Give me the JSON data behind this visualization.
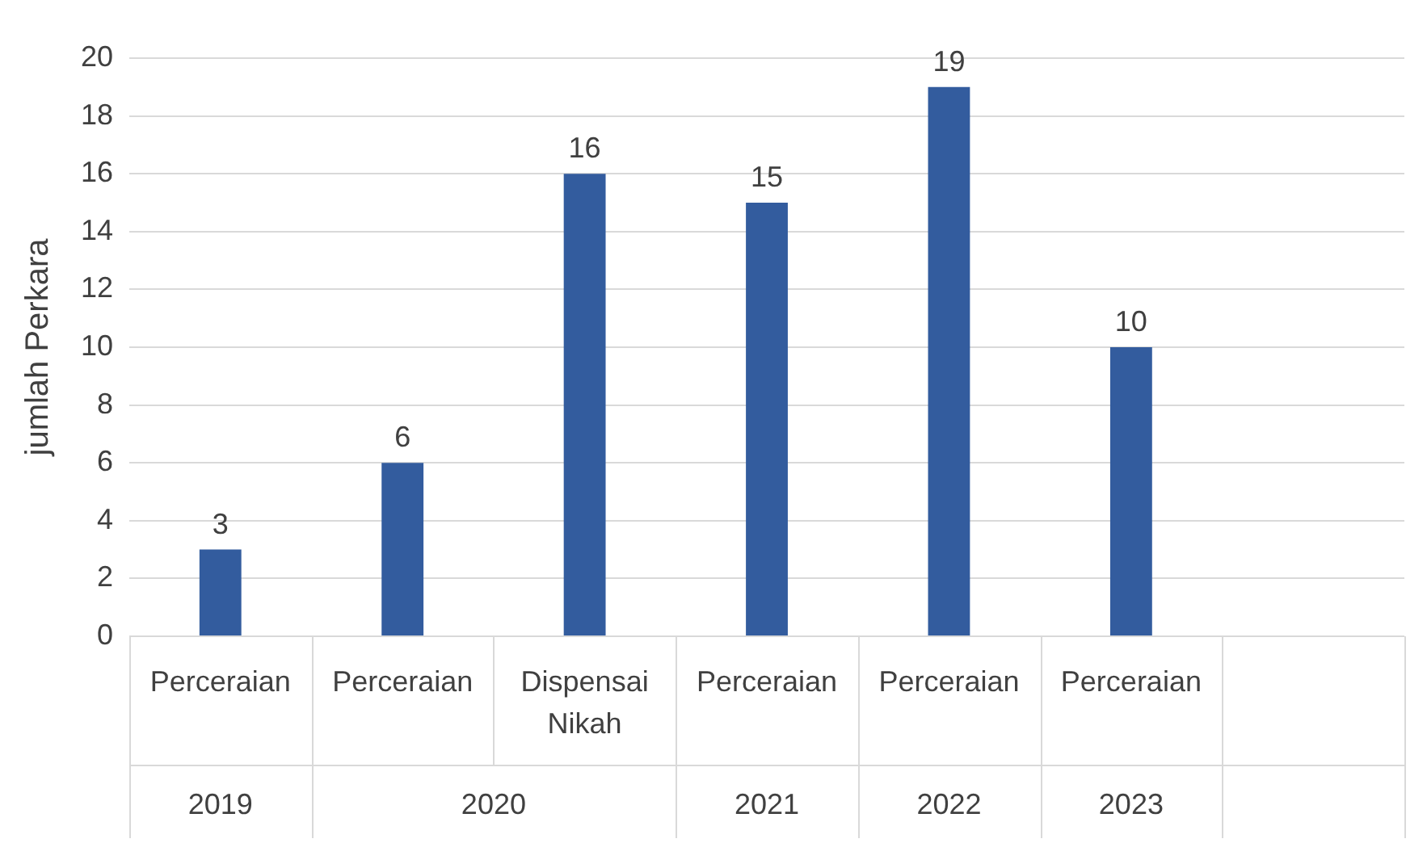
{
  "chart_data": {
    "type": "bar",
    "ylabel": "jumlah Perkara",
    "categories": [
      "Perceraian",
      "Perceraian",
      "Dispensai Nikah",
      "Perceraian",
      "Perceraian",
      "Perceraian",
      null
    ],
    "values": [
      3,
      6,
      16,
      15,
      19,
      10,
      null
    ],
    "color": "#335c9e",
    "ylim": [
      0,
      20
    ],
    "yticks": [
      0,
      2,
      4,
      6,
      8,
      10,
      12,
      14,
      16,
      18,
      20
    ],
    "grid": "y",
    "data_labels": true,
    "legend": false,
    "annotations": [
      "2019",
      "2020",
      "2021",
      "2022",
      "2023"
    ]
  }
}
